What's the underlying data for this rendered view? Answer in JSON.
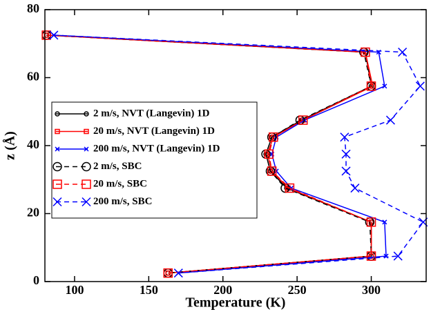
{
  "chart_data": {
    "type": "line",
    "xlabel": "Temperature (K)",
    "ylabel": "z (Å)",
    "xlim": [
      80,
      337
    ],
    "ylim": [
      0,
      80
    ],
    "xticks": [
      100,
      150,
      200,
      250,
      300
    ],
    "yticks": [
      0,
      20,
      40,
      60,
      80
    ],
    "legend": "center left",
    "y": [
      72.5,
      67.5,
      57.5,
      47.5,
      42.5,
      37.5,
      32.5,
      27.5,
      17.5,
      7.5,
      2.5
    ],
    "series": [
      {
        "name": "2 m/s, NVT (Langevin) 1D",
        "color": "#000000",
        "marker": "circle",
        "dashed": false,
        "x": [
          81,
          296,
          300,
          253,
          233,
          229,
          232,
          243,
          300,
          300,
          163
        ]
      },
      {
        "name": "20 m/s, NVT (Langevin) 1D",
        "color": "#ff0000",
        "marker": "square",
        "dashed": false,
        "x": [
          81,
          296,
          301,
          254,
          234,
          230,
          233,
          244,
          300,
          300,
          163
        ]
      },
      {
        "name": "200 m/s, NVT (Langevin) 1D",
        "color": "#0000ff",
        "marker": "x",
        "dashed": false,
        "x": [
          86,
          305,
          309,
          255,
          236,
          233,
          236,
          246,
          309,
          310,
          170
        ]
      },
      {
        "name": "2 m/s, SBC",
        "color": "#000000",
        "marker": "circle",
        "dashed": true,
        "x": [
          81,
          295,
          300,
          252,
          233,
          229,
          232,
          242,
          299,
          300,
          163
        ]
      },
      {
        "name": "20 m/s, SBC",
        "color": "#ff0000",
        "marker": "square",
        "dashed": true,
        "x": [
          81,
          296,
          300,
          254,
          234,
          231,
          233,
          245,
          300,
          300,
          163
        ]
      },
      {
        "name": "200 m/s, SBC",
        "color": "#0000ff",
        "marker": "x",
        "dashed": true,
        "x": [
          86,
          321,
          333,
          313,
          282,
          283,
          283,
          289,
          335,
          318,
          170
        ]
      }
    ]
  }
}
